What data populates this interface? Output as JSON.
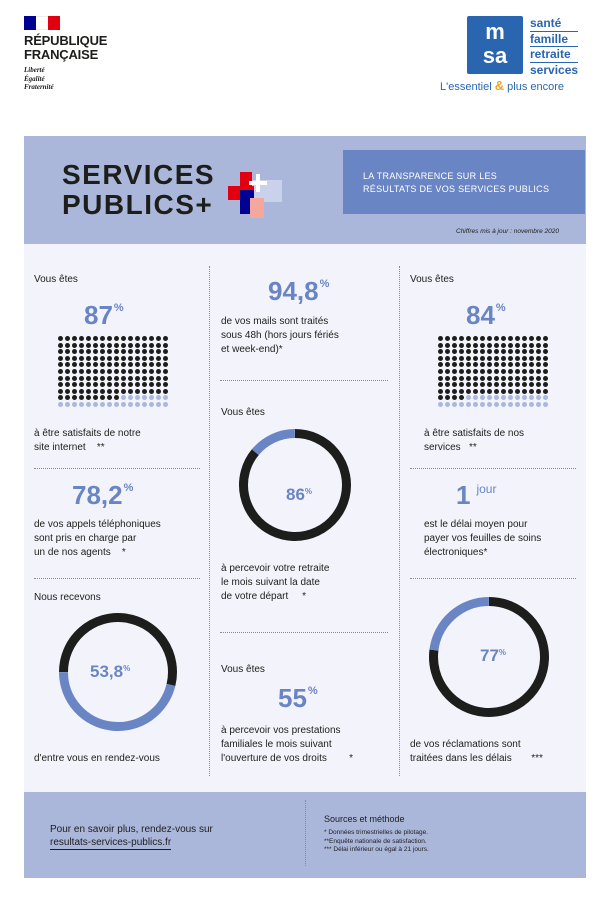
{
  "header": {
    "rf_name_line1": "RÉPUBLIQUE",
    "rf_name_line2": "FRANÇAISE",
    "rf_motto": [
      "Liberté",
      "Égalité",
      "Fraternité"
    ],
    "msa_logo_top": "m",
    "msa_logo_bottom": "sa",
    "msa_words": [
      "santé",
      "famille",
      "retraite",
      "services"
    ],
    "msa_tag_before": "L'essentiel",
    "msa_tag_amp": "&",
    "msa_tag_after": "plus encore"
  },
  "title": {
    "line1": "SERVICES",
    "line2": "PUBLICS+",
    "banner_line1": "LA TRANSPARENCE SUR LES",
    "banner_line2": "RÉSULTATS DE VOS SERVICES PUBLICS",
    "updated": "Chiffres mis à jour : novembre 2020"
  },
  "stats": {
    "site": {
      "label": "Vous êtes",
      "value": "87",
      "unit": "%",
      "desc1": "à être satisfaits de notre",
      "desc2": "site internet",
      "note": "**",
      "dots_level": 0.87
    },
    "mails": {
      "value": "94,8",
      "unit": "%",
      "desc1": "de vos mails sont traités",
      "desc2": "sous 48h (hors jours fériés",
      "desc3": "et week-end)*"
    },
    "services": {
      "label": "Vous êtes",
      "value": "84",
      "unit": "%",
      "desc1": "à être satisfaits de nos",
      "desc2": "services",
      "note": "**",
      "dots_level": 0.84
    },
    "phone": {
      "value": "78,2",
      "unit": "%",
      "desc1": "de vos appels téléphoniques",
      "desc2": "sont pris en charge par",
      "desc3": "un de nos agents",
      "note": "*"
    },
    "retraite": {
      "label": "Vous êtes",
      "value": "86",
      "unit": "%",
      "desc1": "à percevoir votre retraite",
      "desc2": "le mois suivant la date",
      "desc3": "de votre départ",
      "note": "*",
      "ring_level": 0.86
    },
    "delai": {
      "value": "1",
      "unit": "jour",
      "desc1": "est le délai moyen pour",
      "desc2": "payer vos feuilles de soins",
      "desc3": "électroniques*"
    },
    "rdv": {
      "label": "Nous recevons",
      "value": "53,8",
      "unit": "%",
      "desc1": "d'entre vous en rendez-vous",
      "ring_level": 0.538
    },
    "famille": {
      "label": "Vous êtes",
      "value": "55",
      "unit": "%",
      "desc1": "à percevoir vos prestations",
      "desc2": "familiales le mois suivant",
      "desc3": "l'ouverture de vos droits",
      "note": "*"
    },
    "reclam": {
      "value": "77",
      "unit": "%",
      "desc1": "de vos réclamations sont",
      "desc2": "traitées dans les délais",
      "note": "***",
      "ring_level": 0.77
    }
  },
  "footer": {
    "more_text": "Pour en savoir plus, rendez-vous sur",
    "link": "resultats-services-publics.fr",
    "sources_title": "Sources et méthode",
    "sources": [
      "* Données trimestrielles de pilotage.",
      "**Enquête nationale de satisfaction.",
      "*** Délai inférieur ou égal à 21 jours."
    ]
  },
  "colors": {
    "accent": "#6a85c4",
    "dark": "#1d1d1b",
    "light_panel": "#aab7da",
    "rf_blue": "#000091",
    "rf_red": "#e1000f",
    "msa_blue": "#2a66b0"
  }
}
